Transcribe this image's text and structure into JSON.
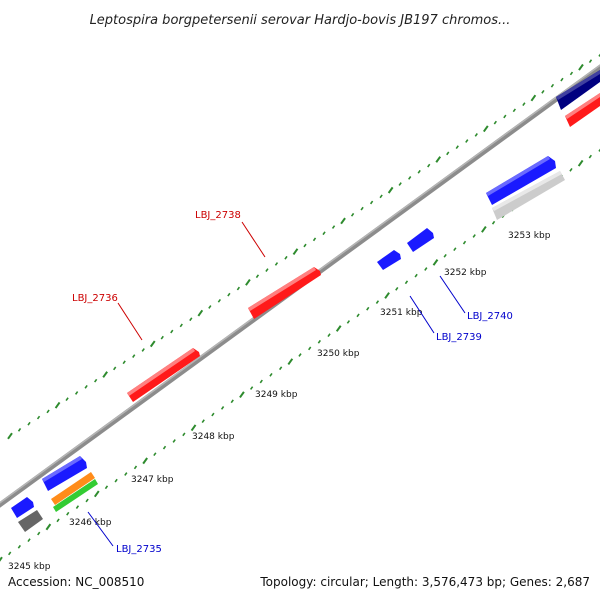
{
  "title": "Leptospira borgpetersenii serovar Hardjo-bovis JB197 chromos...",
  "footer": {
    "accession": "Accession: NC_008510",
    "summary": "Topology: circular; Length: 3,576,473 bp; Genes: 2,687"
  },
  "colors": {
    "backbone": "#8c8c8c",
    "tick": "#2e8b2e",
    "red_gene": "#ff1a1a",
    "blue_gene": "#1a1aff",
    "navy_gene": "#000080",
    "gray_gene": "#666666",
    "lightgray_gene": "#cccccc",
    "orange_gene": "#ff8c1a",
    "green_gene": "#33cc33",
    "label_red": "#cc0000",
    "label_blue": "#0000cc"
  },
  "kbp_labels": [
    "3245 kbp",
    "3246 kbp",
    "3247 kbp",
    "3248 kbp",
    "3249 kbp",
    "3250 kbp",
    "3251 kbp",
    "3252 kbp",
    "3253 kbp"
  ],
  "gene_labels": [
    {
      "id": "lbj2736",
      "text": "LBJ_2736",
      "color": "red"
    },
    {
      "id": "lbj2738",
      "text": "LBJ_2738",
      "color": "red"
    },
    {
      "id": "lbj2735",
      "text": "LBJ_2735",
      "color": "blue"
    },
    {
      "id": "lbj2739",
      "text": "LBJ_2739",
      "color": "blue"
    },
    {
      "id": "lbj2740",
      "text": "LBJ_2740",
      "color": "blue"
    }
  ]
}
